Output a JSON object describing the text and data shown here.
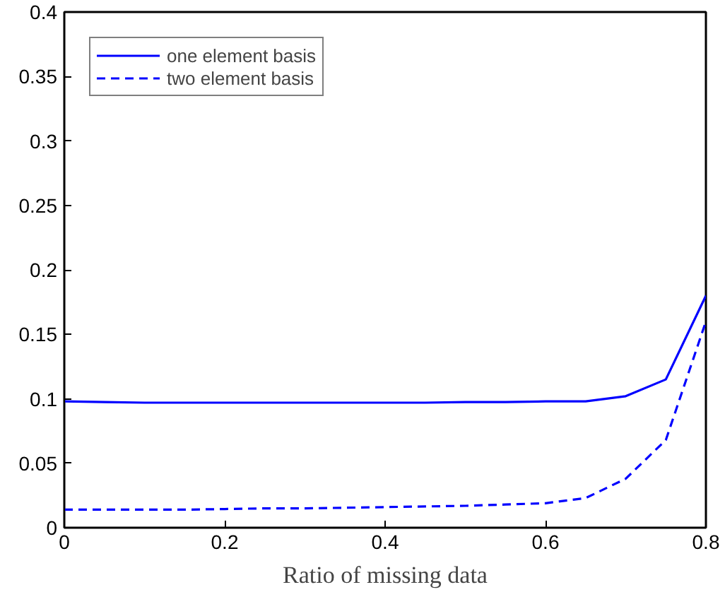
{
  "chart_data": {
    "type": "line",
    "xlabel": "Ratio of missing data",
    "x": [
      0,
      0.05,
      0.1,
      0.15,
      0.2,
      0.25,
      0.3,
      0.35,
      0.4,
      0.45,
      0.5,
      0.55,
      0.6,
      0.65,
      0.7,
      0.75,
      0.8
    ],
    "series": [
      {
        "name": "one element basis",
        "color": "#0000ff",
        "line_style": "solid",
        "values": [
          0.098,
          0.0975,
          0.097,
          0.097,
          0.097,
          0.097,
          0.097,
          0.097,
          0.097,
          0.097,
          0.0975,
          0.0975,
          0.098,
          0.098,
          0.102,
          0.115,
          0.18
        ]
      },
      {
        "name": "two element basis",
        "color": "#0000ff",
        "line_style": "dashed",
        "values": [
          0.014,
          0.014,
          0.014,
          0.014,
          0.0145,
          0.015,
          0.015,
          0.0155,
          0.016,
          0.0165,
          0.017,
          0.018,
          0.019,
          0.023,
          0.038,
          0.068,
          0.16
        ]
      }
    ],
    "xlim": [
      0,
      0.8
    ],
    "xticks": [
      0,
      0.2,
      0.4,
      0.6,
      0.8
    ],
    "ylim": [
      0,
      0.4
    ],
    "yticks": [
      0,
      0.05,
      0.1,
      0.15,
      0.2,
      0.25,
      0.3,
      0.35,
      0.4
    ],
    "legend": "top left",
    "grid": false,
    "marker": "none"
  }
}
